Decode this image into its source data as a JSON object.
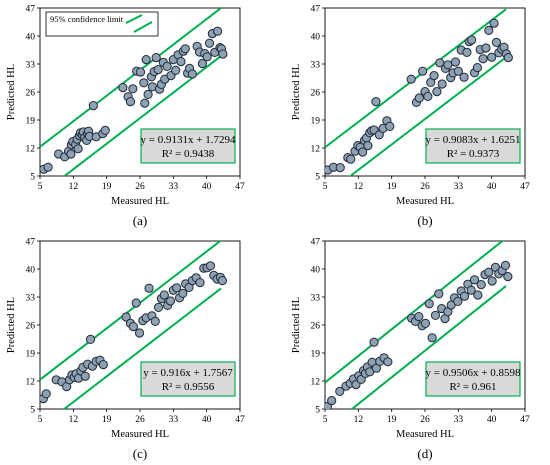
{
  "chart_data": [
    {
      "type": "scatter",
      "panel_label": "(a)",
      "xlabel": "Measured HL",
      "ylabel": "Predicted HL",
      "xticks": [
        5,
        12,
        19,
        26,
        33,
        40,
        47
      ],
      "yticks": [
        5,
        12,
        19,
        26,
        33,
        40,
        47
      ],
      "xlim": [
        5,
        47
      ],
      "ylim": [
        5,
        47
      ],
      "legend": {
        "text": "95% confidence limit",
        "placement": "top-left"
      },
      "equation": "y = 0.9131x + 1.7294",
      "r2": "R² = 0.9438",
      "fit": {
        "slope": 0.9131,
        "intercept": 1.7294
      },
      "confidence_offset": 6,
      "limit_x_range": [
        5,
        43
      ],
      "x": [
        5.8,
        6.7,
        8.9,
        10.2,
        11.0,
        11.5,
        11.6,
        11.9,
        12.5,
        12.8,
        13.0,
        13.3,
        13.5,
        13.9,
        14.1,
        14.4,
        14.8,
        15.0,
        15.2,
        15.4,
        16.2,
        16.8,
        18.2,
        18.7,
        22.4,
        23.5,
        24.0,
        24.5,
        25.3,
        26.1,
        26.8,
        27.0,
        27.3,
        27.7,
        28.4,
        28.6,
        29.0,
        29.4,
        29.8,
        30.1,
        30.5,
        30.9,
        31.2,
        31.7,
        32.5,
        33.0,
        33.5,
        34.0,
        34.6,
        35.1,
        35.5,
        36.0,
        36.4,
        37.0,
        38.0,
        38.5,
        39.1,
        39.6,
        40.1,
        40.6,
        41.2,
        41.7,
        42.3,
        42.8,
        43.1,
        43.4
      ],
      "y": [
        6.7,
        7.2,
        10.5,
        9.8,
        11.2,
        10.5,
        12.8,
        13.6,
        12.9,
        14.2,
        11.8,
        15.1,
        15.8,
        15.3,
        16.0,
        14.6,
        13.9,
        15.6,
        16.2,
        14.9,
        22.6,
        14.8,
        15.6,
        16.4,
        27.1,
        24.8,
        23.6,
        26.8,
        31.2,
        31.0,
        28.3,
        23.2,
        34.1,
        25.4,
        29.8,
        27.3,
        31.1,
        34.6,
        31.6,
        26.7,
        27.9,
        33.4,
        29.2,
        32.4,
        30.1,
        34.1,
        31.4,
        35.3,
        33.6,
        36.2,
        36.8,
        30.7,
        31.9,
        30.5,
        37.4,
        36.0,
        33.1,
        35.6,
        34.8,
        38.2,
        40.6,
        35.9,
        41.2,
        37.1,
        36.8,
        35.5
      ]
    },
    {
      "type": "scatter",
      "panel_label": "(b)",
      "xlabel": "Measured HL",
      "ylabel": "Predicted HL",
      "xticks": [
        5,
        12,
        19,
        26,
        33,
        40,
        47
      ],
      "yticks": [
        5,
        12,
        19,
        26,
        33,
        40,
        47
      ],
      "xlim": [
        5,
        47
      ],
      "ylim": [
        5,
        47
      ],
      "equation": "y = 0.9083x + 1.6251",
      "r2": "R² = 0.9373",
      "fit": {
        "slope": 0.9083,
        "intercept": 1.6251
      },
      "confidence_offset": 6,
      "limit_x_range": [
        5,
        43
      ],
      "x": [
        5.6,
        6.8,
        8.2,
        9.8,
        10.4,
        11.3,
        11.9,
        12.4,
        12.9,
        13.3,
        13.7,
        14.0,
        14.4,
        14.8,
        15.3,
        15.7,
        16.4,
        17.2,
        18.0,
        18.6,
        23.1,
        24.2,
        24.8,
        25.5,
        26.0,
        26.6,
        27.2,
        27.9,
        28.5,
        29.1,
        29.6,
        30.3,
        30.8,
        31.4,
        31.9,
        32.4,
        33.0,
        33.6,
        34.2,
        34.8,
        35.3,
        35.8,
        36.4,
        37.0,
        37.6,
        38.2,
        38.8,
        39.4,
        40.0,
        40.5,
        41.0,
        41.5,
        42.1,
        42.6,
        43.1,
        43.5
      ],
      "y": [
        6.5,
        7.2,
        7.1,
        9.6,
        9.2,
        11.2,
        12.6,
        12.2,
        11.0,
        13.9,
        14.5,
        12.6,
        15.8,
        16.3,
        16.5,
        23.6,
        15.3,
        16.9,
        18.8,
        17.4,
        29.2,
        23.4,
        24.5,
        31.2,
        26.1,
        24.9,
        28.4,
        30.1,
        26.1,
        33.3,
        28.0,
        31.9,
        32.8,
        29.6,
        30.8,
        33.5,
        31.2,
        36.5,
        29.7,
        35.9,
        38.6,
        39.0,
        30.8,
        32.1,
        36.6,
        34.3,
        37.0,
        41.4,
        34.7,
        43.2,
        38.4,
        35.8,
        36.7,
        37.2,
        35.5,
        34.6
      ]
    },
    {
      "type": "scatter",
      "panel_label": "(c)",
      "xlabel": "Measured HL",
      "ylabel": "Predicted HL",
      "xticks": [
        5,
        12,
        19,
        26,
        33,
        40,
        47
      ],
      "yticks": [
        5,
        12,
        19,
        26,
        33,
        40,
        47
      ],
      "xlim": [
        5,
        47
      ],
      "ylim": [
        5,
        47
      ],
      "equation": "y = 0.916x + 1.7567",
      "r2": "R² = 0.9556",
      "fit": {
        "slope": 0.916,
        "intercept": 1.7567
      },
      "confidence_offset": 6,
      "limit_x_range": [
        5,
        43
      ],
      "x": [
        5.7,
        6.3,
        8.4,
        9.6,
        10.6,
        11.2,
        11.7,
        12.2,
        12.6,
        13.1,
        13.6,
        14.0,
        14.5,
        15.0,
        15.6,
        16.0,
        16.8,
        17.6,
        18.3,
        23.1,
        24.0,
        24.6,
        25.2,
        25.9,
        26.6,
        27.3,
        27.9,
        28.5,
        29.2,
        29.9,
        30.5,
        31.1,
        31.8,
        32.4,
        33.0,
        33.7,
        34.3,
        35.0,
        35.6,
        36.3,
        37.0,
        37.8,
        38.6,
        39.4,
        40.1,
        40.8,
        41.5,
        42.2,
        42.9,
        43.3
      ],
      "y": [
        7.6,
        8.8,
        12.3,
        11.8,
        10.6,
        12.3,
        13.5,
        12.9,
        13.8,
        12.7,
        14.5,
        15.4,
        13.2,
        16.2,
        22.4,
        15.7,
        16.9,
        17.2,
        16.1,
        28.0,
        26.4,
        25.6,
        31.5,
        24.0,
        27.1,
        27.8,
        35.2,
        28.3,
        26.9,
        30.4,
        32.6,
        33.5,
        30.9,
        32.0,
        34.7,
        35.3,
        32.8,
        33.9,
        36.3,
        35.4,
        37.1,
        37.8,
        36.6,
        40.2,
        40.3,
        40.8,
        38.4,
        37.5,
        37.9,
        37.1
      ]
    },
    {
      "type": "scatter",
      "panel_label": "(d)",
      "xlabel": "Measured HL",
      "ylabel": "Predicted HL",
      "xticks": [
        5,
        12,
        19,
        26,
        33,
        40,
        47
      ],
      "yticks": [
        5,
        12,
        19,
        26,
        33,
        40,
        47
      ],
      "xlim": [
        5,
        47
      ],
      "ylim": [
        5,
        47
      ],
      "equation": "y = 0.9506x + 0.8598",
      "r2": "R² = 0.961",
      "fit": {
        "slope": 0.9506,
        "intercept": 0.8598
      },
      "confidence_offset": 6,
      "limit_x_range": [
        5,
        43
      ],
      "x": [
        5.5,
        6.4,
        8.1,
        9.4,
        10.3,
        11.0,
        11.5,
        12.1,
        12.6,
        13.1,
        13.5,
        13.9,
        14.4,
        14.9,
        15.3,
        15.8,
        16.5,
        17.4,
        18.2,
        23.2,
        24.0,
        24.7,
        25.4,
        26.1,
        26.9,
        27.5,
        28.2,
        28.9,
        29.5,
        30.2,
        30.8,
        31.5,
        32.2,
        32.9,
        33.6,
        34.3,
        35.0,
        35.7,
        36.4,
        37.1,
        37.8,
        38.6,
        39.4,
        40.1,
        40.8,
        41.5,
        42.2,
        42.9,
        43.4
      ],
      "y": [
        5.6,
        7.1,
        9.4,
        10.7,
        11.4,
        12.5,
        11.1,
        13.3,
        12.4,
        14.6,
        13.9,
        15.5,
        14.3,
        16.7,
        21.7,
        15.2,
        16.9,
        17.8,
        16.8,
        27.7,
        26.9,
        28.1,
        25.8,
        26.4,
        31.3,
        22.8,
        28.4,
        33.8,
        30.1,
        27.6,
        29.3,
        31.0,
        32.8,
        31.9,
        34.5,
        33.2,
        36.2,
        34.7,
        37.3,
        33.5,
        36.1,
        38.6,
        39.2,
        37.0,
        40.4,
        38.8,
        39.6,
        40.9,
        38.1
      ]
    }
  ]
}
